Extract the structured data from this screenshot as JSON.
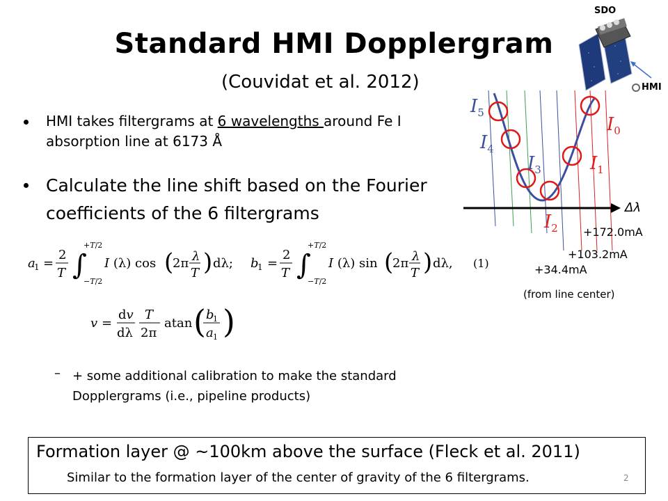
{
  "title": "Standard HMI Dopplergram",
  "subtitle": "(Couvidat et al. 2012)",
  "bullets": {
    "b1_pre": "HMI takes filtergrams at ",
    "b1_underline": "6 wavelengths ",
    "b1_post": "around Fe I absorption line at 6173 Å",
    "b2": "Calculate the line shift based on the Fourier coefficients of the 6 filtergrams",
    "sub_dash": "–",
    "sub": "+ some additional calibration to make the standard Dopplergrams (i.e., pipeline products)"
  },
  "equation": {
    "number": "(1)"
  },
  "diagram": {
    "sdo_label": "SDO",
    "hmi_label": "HMI",
    "axis_label": "Δλ",
    "i5": "5",
    "i4": "4",
    "i3": "3",
    "i2": "2",
    "i1": "1",
    "i0": "0",
    "offset_1": "+172.0mA",
    "offset_2": "+103.2mA",
    "offset_3": "+34.4mA",
    "note": "(from line center)",
    "colors": {
      "blue": "#3a4fa0",
      "red": "#e02020",
      "green": "#3aa04a",
      "circle": "#e01818"
    }
  },
  "footer": {
    "main": "Formation layer @ ~100km above the surface (Fleck et al. 2011)",
    "sub": "Similar to the formation layer of the center of gravity of the 6 filtergrams.",
    "page": "2"
  }
}
